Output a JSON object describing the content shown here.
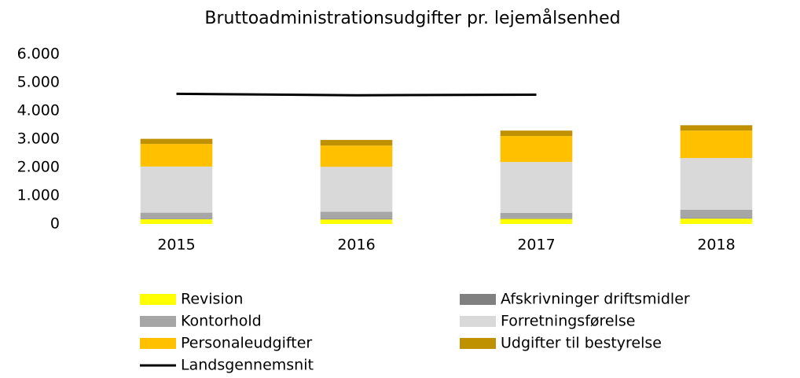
{
  "chart_data": {
    "type": "bar",
    "stacked": true,
    "title": "Bruttoadministrationsudgifter pr. lejemålsenhed",
    "categories": [
      "2015",
      "2016",
      "2017",
      "2018"
    ],
    "series": [
      {
        "name": "Revision",
        "color": "#ffff00",
        "values": [
          170,
          160,
          180,
          190
        ]
      },
      {
        "name": "Afskrivninger driftsmidler",
        "color": "#808080",
        "values": [
          20,
          20,
          20,
          20
        ]
      },
      {
        "name": "Kontorhold",
        "color": "#a6a6a6",
        "values": [
          210,
          250,
          190,
          290
        ]
      },
      {
        "name": "Forretningsførelse",
        "color": "#d9d9d9",
        "values": [
          1630,
          1590,
          1800,
          1830
        ]
      },
      {
        "name": "Personaleudgifter",
        "color": "#ffc000",
        "values": [
          800,
          750,
          920,
          970
        ]
      },
      {
        "name": "Udgifter til bestyrelse",
        "color": "#bf9000",
        "values": [
          180,
          200,
          190,
          190
        ]
      },
      {
        "name": "Landsgennemsnit",
        "color": "#000000",
        "type": "line",
        "values": [
          4600,
          4550,
          4570,
          null
        ]
      }
    ],
    "ylim": [
      0,
      6000
    ],
    "yticks": [
      0,
      {
        "value": 1000,
        "label": "1.000"
      },
      {
        "value": 2000,
        "label": "2.000"
      },
      {
        "value": 3000,
        "label": "3.000"
      },
      {
        "value": 4000,
        "label": "4.000"
      },
      {
        "value": 5000,
        "label": "5.000"
      },
      {
        "value": 6000,
        "label": "6.000"
      }
    ],
    "grid": false
  }
}
